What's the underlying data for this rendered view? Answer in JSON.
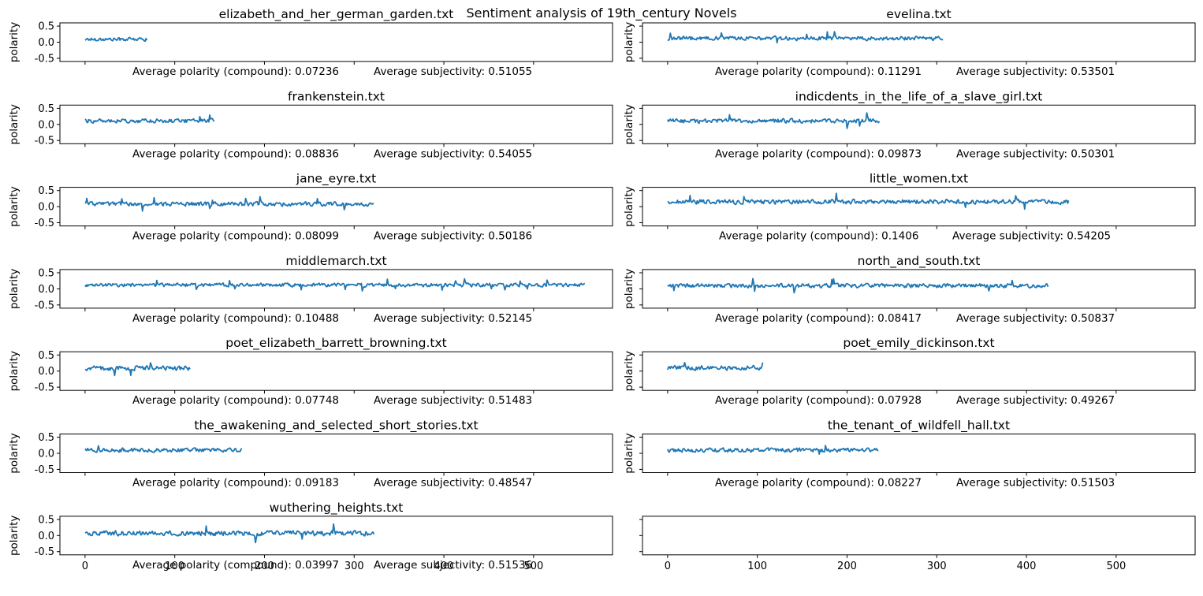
{
  "chart_data": {
    "type": "line",
    "suptitle": "Sentiment analysis of 19th_century Novels",
    "layout": "7x2 grid of line subplots, bottom-right subplot empty",
    "line_color": "#1f77b4",
    "ylabel": "polarity",
    "ylim": [
      -0.6,
      0.6
    ],
    "xlim": [
      -28,
      588
    ],
    "yticks": [
      "0.5",
      "0.0",
      "-0.5"
    ],
    "xticks": [
      "0",
      "100",
      "200",
      "300",
      "400",
      "500"
    ],
    "polarity_label": "Average polarity (compound): ",
    "subjectivity_label": "Average subjectivity: ",
    "grid": false,
    "subplots": [
      {
        "title": "elizabeth_and_her_german_garden.txt",
        "n_points": 70,
        "mean": 0.09,
        "amp": 0.07,
        "avg_polarity": "0.07236",
        "avg_subjectivity": "0.51055"
      },
      {
        "title": "evelina.txt",
        "n_points": 308,
        "mean": 0.12,
        "amp": 0.08,
        "avg_polarity": "0.11291",
        "avg_subjectivity": "0.53501"
      },
      {
        "title": "frankenstein.txt",
        "n_points": 145,
        "mean": 0.11,
        "amp": 0.08,
        "avg_polarity": "0.08836",
        "avg_subjectivity": "0.54055"
      },
      {
        "title": "indicdents_in_the_life_of_a_slave_girl.txt",
        "n_points": 237,
        "mean": 0.11,
        "amp": 0.09,
        "avg_polarity": "0.09873",
        "avg_subjectivity": "0.50301"
      },
      {
        "title": "jane_eyre.txt",
        "n_points": 323,
        "mean": 0.08,
        "amp": 0.08,
        "avg_polarity": "0.08099",
        "avg_subjectivity": "0.50186"
      },
      {
        "title": "little_women.txt",
        "n_points": 448,
        "mean": 0.15,
        "amp": 0.09,
        "avg_polarity": "0.1406",
        "avg_subjectivity": "0.54205"
      },
      {
        "title": "middlemarch.txt",
        "n_points": 558,
        "mean": 0.12,
        "amp": 0.07,
        "avg_polarity": "0.10488",
        "avg_subjectivity": "0.52145"
      },
      {
        "title": "north_and_south.txt",
        "n_points": 425,
        "mean": 0.1,
        "amp": 0.08,
        "avg_polarity": "0.08417",
        "avg_subjectivity": "0.50837"
      },
      {
        "title": "poet_elizabeth_barrett_browning.txt",
        "n_points": 118,
        "mean": 0.09,
        "amp": 0.09,
        "avg_polarity": "0.07748",
        "avg_subjectivity": "0.51483"
      },
      {
        "title": "poet_emily_dickinson.txt",
        "n_points": 107,
        "mean": 0.1,
        "amp": 0.09,
        "avg_polarity": "0.07928",
        "avg_subjectivity": "0.49267"
      },
      {
        "title": "the_awakening_and_selected_short_stories.txt",
        "n_points": 176,
        "mean": 0.1,
        "amp": 0.08,
        "avg_polarity": "0.09183",
        "avg_subjectivity": "0.48547"
      },
      {
        "title": "the_tenant_of_wildfell_hall.txt",
        "n_points": 236,
        "mean": 0.1,
        "amp": 0.08,
        "avg_polarity": "0.08227",
        "avg_subjectivity": "0.51503"
      },
      {
        "title": "wuthering_heights.txt",
        "n_points": 323,
        "mean": 0.07,
        "amp": 0.1,
        "avg_polarity": "0.03997",
        "avg_subjectivity": "0.51536"
      },
      {
        "title": "",
        "n_points": 0,
        "empty": true
      }
    ]
  }
}
